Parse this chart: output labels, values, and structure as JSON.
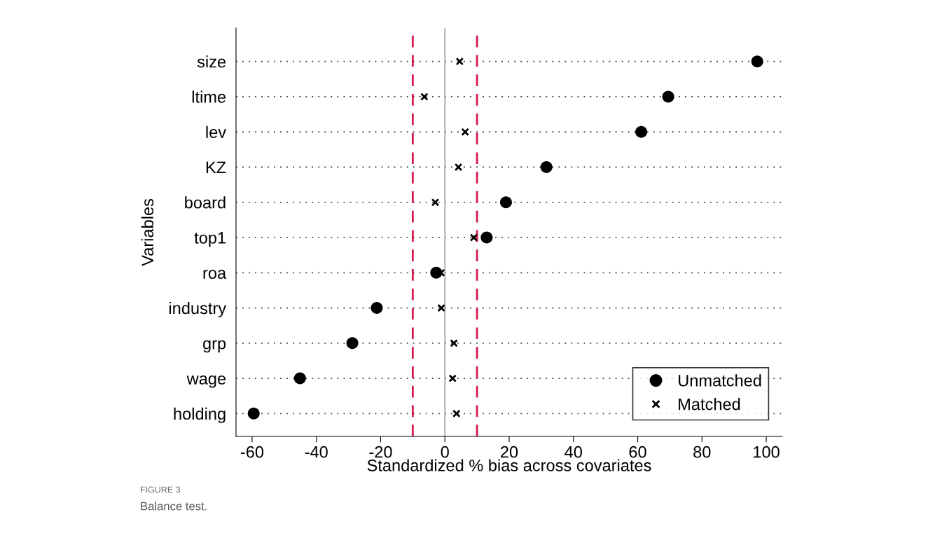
{
  "chart_data": {
    "type": "scatter",
    "orientation": "horizontal",
    "xlabel": "Standardized % bias across covariates",
    "ylabel": "Variables",
    "categories": [
      "size",
      "ltime",
      "lev",
      "KZ",
      "board",
      "top1",
      "roa",
      "industry",
      "grp",
      "wage",
      "holding"
    ],
    "series": [
      {
        "name": "Unmatched",
        "color": "#000000",
        "marker": "circle",
        "values": [
          97.2,
          69.5,
          61.1,
          31.6,
          19.0,
          13.0,
          -2.7,
          -21.2,
          -28.8,
          -45.1,
          -59.5
        ]
      },
      {
        "name": "Matched",
        "color": "#000000",
        "marker": "cross",
        "values": [
          4.6,
          -6.4,
          6.3,
          4.2,
          -3.0,
          9.0,
          -1.2,
          -1.1,
          2.8,
          2.4,
          3.6
        ]
      }
    ],
    "xlim": [
      -65,
      105
    ],
    "xticks": [
      -60,
      -40,
      -20,
      0,
      20,
      40,
      60,
      80,
      100
    ],
    "ref_lines": [
      {
        "axis": "x",
        "value": -10,
        "color": "#d6194b",
        "line_style": "dashed"
      },
      {
        "axis": "x",
        "value": 10,
        "color": "#d6194b",
        "line_style": "dashed"
      },
      {
        "axis": "x",
        "value": 0,
        "color": "#a0a0a0",
        "line_style": "solid"
      }
    ],
    "grid": "y",
    "legend": "bottom right",
    "annotations": [
      "FIGURE 3",
      "Balance test."
    ]
  }
}
